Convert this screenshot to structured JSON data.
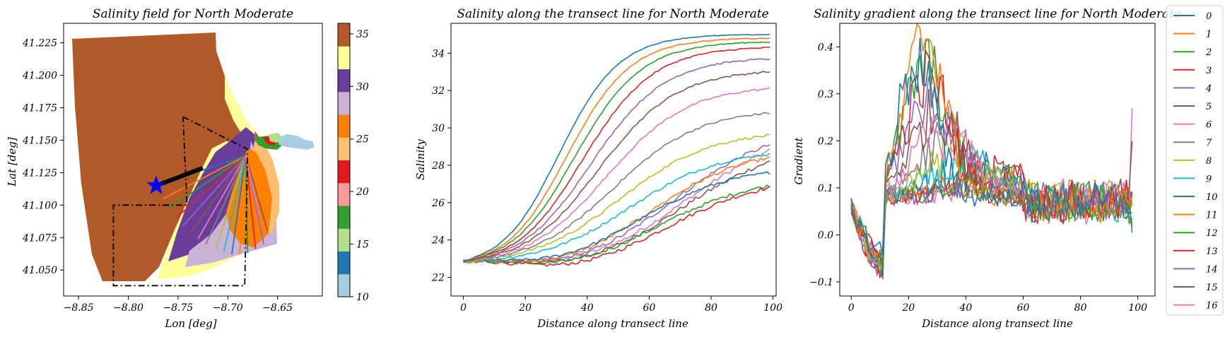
{
  "colors": {
    "tab10": [
      "#1f77b4",
      "#ff7f0e",
      "#2ca02c",
      "#d62728",
      "#9467bd",
      "#8c564b",
      "#e377c2",
      "#7f7f7f",
      "#bcbd22",
      "#17becf"
    ],
    "paired": [
      "#a6cee3",
      "#1f78b4",
      "#b2df8a",
      "#33a02c",
      "#fb9a99",
      "#e31a1c",
      "#fdbf6f",
      "#ff7f00",
      "#cab2d6",
      "#6a3d9a",
      "#ffff99",
      "#b15928"
    ],
    "star": "#0000ff",
    "boundary": "#000000"
  },
  "chart_data": [
    {
      "type": "map",
      "title": "Salinity field for North Moderate",
      "xlabel": "Lon [deg]",
      "ylabel": "Lat [deg]",
      "xlim": [
        -8.865,
        -8.605
      ],
      "ylim": [
        41.03,
        41.24
      ],
      "xticks": [
        -8.85,
        -8.8,
        -8.75,
        -8.7,
        -8.65
      ],
      "xtick_labels": [
        "−8.85",
        "−8.80",
        "−8.75",
        "−8.70",
        "−8.65"
      ],
      "yticks": [
        41.05,
        41.075,
        41.1,
        41.125,
        41.15,
        41.175,
        41.2,
        41.225
      ],
      "ytick_labels": [
        "41.050",
        "41.075",
        "41.100",
        "41.125",
        "41.150",
        "41.175",
        "41.200",
        "41.225"
      ],
      "colorbar": {
        "range": [
          10,
          36
        ],
        "ticks": [
          10,
          15,
          20,
          25,
          30,
          35
        ],
        "tick_labels": [
          "10",
          "15",
          "20",
          "25",
          "30",
          "35"
        ]
      },
      "boundary_polygon": [
        [
          -8.745,
          41.168
        ],
        [
          -8.68,
          41.143
        ],
        [
          -8.683,
          41.038
        ],
        [
          -8.815,
          41.038
        ],
        [
          -8.815,
          41.1
        ],
        [
          -8.741,
          41.1
        ],
        [
          -8.745,
          41.168
        ]
      ],
      "star": [
        -8.772,
        41.115
      ],
      "fan_origin": [
        -8.682,
        41.138
      ],
      "transect_thick_line": [
        [
          -8.772,
          41.115
        ],
        [
          -8.727,
          41.128
        ]
      ]
    },
    {
      "type": "line",
      "title": "Salinity along the transect line for North Moderate",
      "xlabel": "Distance along transect line",
      "ylabel": "Salinity",
      "xlim": [
        -4,
        101
      ],
      "ylim": [
        21.0,
        35.6
      ],
      "xticks": [
        0,
        20,
        40,
        60,
        80,
        100
      ],
      "yticks": [
        22,
        24,
        26,
        28,
        30,
        32,
        34
      ],
      "series_end": [
        35.0,
        34.8,
        34.6,
        34.3,
        33.7,
        33.0,
        32.1,
        30.8,
        29.6,
        28.6,
        27.6,
        28.4,
        26.9,
        26.8,
        29.1,
        28.2,
        28.8
      ],
      "series_min": [
        22.2,
        22.2,
        22.3,
        22.3,
        22.4,
        22.5,
        22.6,
        22.7,
        22.8,
        22.7,
        22.2,
        21.9,
        21.9,
        21.7,
        21.8,
        21.8,
        21.9
      ]
    },
    {
      "type": "line",
      "title": "Salinity gradient along the transect line for North Moderate",
      "xlabel": "Distance along transect line",
      "ylabel": "Gradient",
      "xlim": [
        -4,
        106
      ],
      "ylim": [
        -0.13,
        0.45
      ],
      "xticks": [
        0,
        20,
        40,
        60,
        80,
        100
      ],
      "yticks": [
        -0.1,
        0.0,
        0.1,
        0.2,
        0.3,
        0.4
      ],
      "ytick_labels": [
        "−0.1",
        "0.0",
        "0.1",
        "0.2",
        "0.3",
        "0.4"
      ],
      "series_peak": [
        0.37,
        0.43,
        0.36,
        0.33,
        0.3,
        0.26,
        0.22,
        0.2,
        0.17,
        0.15,
        0.14,
        0.12,
        0.12,
        0.13,
        0.11,
        0.12,
        0.11
      ],
      "series_peak_x": [
        23,
        26,
        26,
        27,
        28,
        30,
        32,
        34,
        36,
        39,
        42,
        46,
        48,
        50,
        52,
        54,
        56
      ],
      "legend": {
        "position": "right",
        "labels": [
          "0",
          "1",
          "2",
          "3",
          "4",
          "5",
          "6",
          "7",
          "8",
          "9",
          "10",
          "11",
          "12",
          "13",
          "14",
          "15",
          "16"
        ]
      }
    }
  ]
}
